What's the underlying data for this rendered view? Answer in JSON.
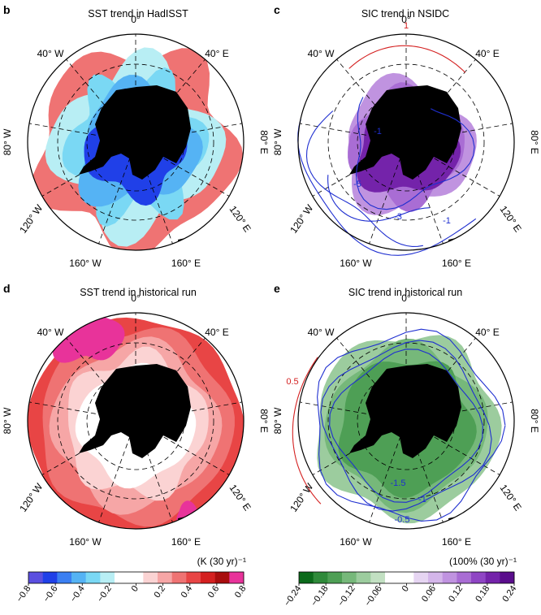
{
  "panels": [
    {
      "letter": "b",
      "title": "SST trend in HadISST",
      "scheme": "sst"
    },
    {
      "letter": "c",
      "title": "SIC trend in NSIDC",
      "scheme": "sic"
    },
    {
      "letter": "d",
      "title": "SST trend in historical run",
      "scheme": "sst"
    },
    {
      "letter": "e",
      "title": "SIC trend in historical run",
      "scheme": "sic"
    }
  ],
  "map_labels": {
    "top": "0°",
    "upper_left": "40° W",
    "upper_right": "40° E",
    "left": "80° W",
    "right": "80° E",
    "lower_left": "120° W",
    "lower_right": "120° E",
    "bottom_left": "160° W",
    "bottom_right": "160° E"
  },
  "contours": {
    "c": [
      {
        "label": "1",
        "color": "#d42020"
      },
      {
        "label": "-1",
        "color": "#1f2fd0"
      },
      {
        "label": "-5",
        "color": "#1f2fd0"
      },
      {
        "label": "-3",
        "color": "#1f2fd0"
      },
      {
        "label": "-1",
        "color": "#1f2fd0"
      }
    ],
    "e": [
      {
        "label": "0.5",
        "color": "#d42020"
      },
      {
        "label": "-1.5",
        "color": "#1f2fd0"
      },
      {
        "label": "-1",
        "color": "#1f2fd0"
      },
      {
        "label": "-0.5",
        "color": "#1f2fd0"
      }
    ]
  },
  "colorbars": {
    "sst": {
      "unit": "(K (30 yr)⁻¹",
      "ticks": [
        "-0.8",
        "-0.6",
        "-0.4",
        "-0.2",
        "0",
        "0.2",
        "0.4",
        "0.6",
        "0.8"
      ],
      "colors": [
        "#5b4fe0",
        "#2040e8",
        "#3b7ff2",
        "#55b3f4",
        "#7ad8f4",
        "#b8eef4",
        "#ffffff",
        "#ffffff",
        "#fbd3d3",
        "#f6a6a6",
        "#ef7373",
        "#e84545",
        "#d42020",
        "#a80d0d",
        "#e8339a"
      ]
    },
    "sic": {
      "unit": "(100% (30 yr)⁻¹",
      "ticks": [
        "-0.24",
        "-0.18",
        "-0.12",
        "-0.06",
        "0",
        "0.06",
        "0.12",
        "0.18",
        "0.24"
      ],
      "colors": [
        "#0b6a1a",
        "#2f8a3a",
        "#4e9f55",
        "#76b87a",
        "#9ccc9e",
        "#c2e0c2",
        "#ffffff",
        "#ffffff",
        "#e6d5f2",
        "#d4b6ea",
        "#c093e0",
        "#a96dd4",
        "#8f45c4",
        "#7423aa",
        "#5a0d8c"
      ]
    }
  }
}
